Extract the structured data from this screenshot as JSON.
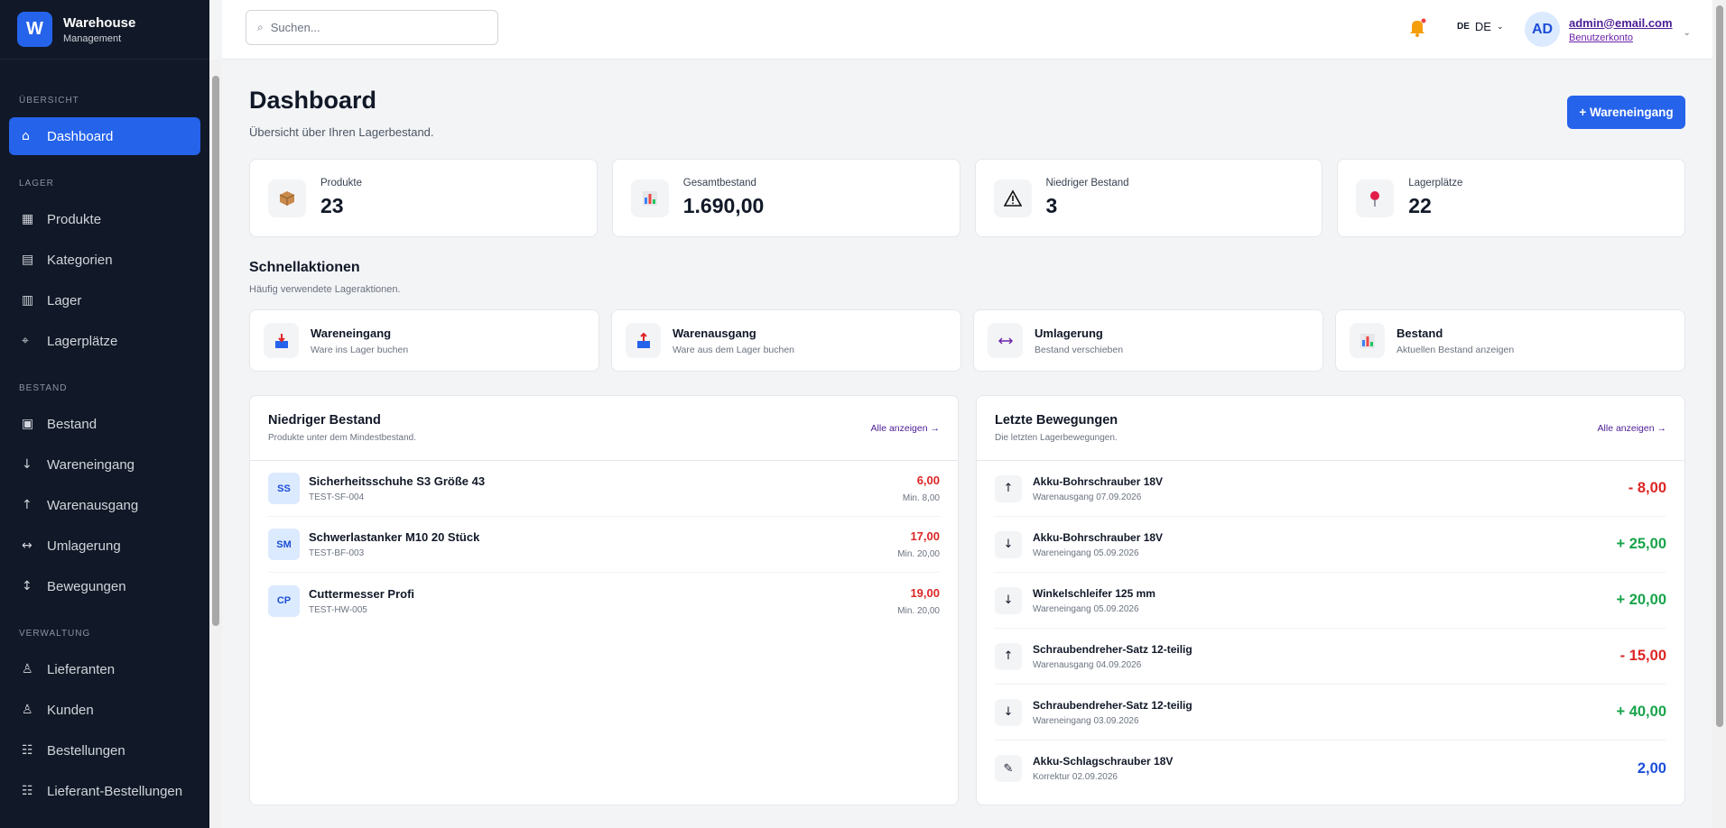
{
  "sidebar": {
    "logo": "W",
    "brand_title": "Warehouse",
    "brand_subtitle": "Management",
    "sections": [
      {
        "label": "ÜBERSICHT",
        "items": [
          {
            "icon": "⌂",
            "label": "Dashboard",
            "active": true
          }
        ]
      },
      {
        "label": "LAGER",
        "items": [
          {
            "icon": "▦",
            "label": "Produkte"
          },
          {
            "icon": "▤",
            "label": "Kategorien"
          },
          {
            "icon": "▥",
            "label": "Lager"
          },
          {
            "icon": "⌖",
            "label": "Lagerplätze"
          }
        ]
      },
      {
        "label": "BESTAND",
        "items": [
          {
            "icon": "▣",
            "label": "Bestand"
          },
          {
            "icon": "↓",
            "label": "Wareneingang"
          },
          {
            "icon": "↑",
            "label": "Warenausgang"
          },
          {
            "icon": "↔",
            "label": "Umlagerung"
          },
          {
            "icon": "↕",
            "label": "Bewegungen"
          }
        ]
      },
      {
        "label": "VERWALTUNG",
        "items": [
          {
            "icon": "♙",
            "label": "Lieferanten"
          },
          {
            "icon": "♙",
            "label": "Kunden"
          },
          {
            "icon": "☷",
            "label": "Bestellungen"
          },
          {
            "icon": "☷",
            "label": "Lieferant-Bestellungen"
          }
        ]
      }
    ]
  },
  "topbar": {
    "search_placeholder": "Suchen...",
    "language_flag": "DE",
    "language": "DE",
    "user_initials": "AD",
    "user_email": "admin@email.com",
    "account_link": "Benutzerkonto"
  },
  "header": {
    "title": "Dashboard",
    "subtitle": "Übersicht über Ihren Lagerbestand.",
    "primary_button": "+ Wareneingang"
  },
  "stats": [
    {
      "label": "Produkte",
      "value": "23"
    },
    {
      "label": "Gesamtbestand",
      "value": "1.690,00"
    },
    {
      "label": "Niedriger Bestand",
      "value": "3"
    },
    {
      "label": "Lagerplätze",
      "value": "22"
    }
  ],
  "quick_actions": {
    "title": "Schnellaktionen",
    "subtitle": "Häufig verwendete Lageraktionen.",
    "items": [
      {
        "title": "Wareneingang",
        "subtitle": "Ware ins Lager buchen"
      },
      {
        "title": "Warenausgang",
        "subtitle": "Ware aus dem Lager buchen"
      },
      {
        "title": "Umlagerung",
        "subtitle": "Bestand verschieben"
      },
      {
        "title": "Bestand",
        "subtitle": "Aktuellen Bestand anzeigen"
      }
    ]
  },
  "low_stock": {
    "title": "Niedriger Bestand",
    "subtitle": "Produkte unter dem Mindestbestand.",
    "link": "Alle anzeigen →",
    "rows": [
      {
        "initials": "SS",
        "name": "Sicherheitsschuhe S3 Größe 43",
        "sku": "TEST-SF-004",
        "quantity": "6,00",
        "minimum": "Min. 8,00"
      },
      {
        "initials": "SM",
        "name": "Schwerlastanker M10 20 Stück",
        "sku": "TEST-BF-003",
        "quantity": "17,00",
        "minimum": "Min. 20,00"
      },
      {
        "initials": "CP",
        "name": "Cuttermesser Profi",
        "sku": "TEST-HW-005",
        "quantity": "19,00",
        "minimum": "Min. 20,00"
      }
    ]
  },
  "movements": {
    "title": "Letzte Bewegungen",
    "subtitle": "Die letzten Lagerbewegungen.",
    "link": "Alle anzeigen →",
    "rows": [
      {
        "icon": "↑",
        "product": "Akku-Bohrschrauber 18V",
        "detail": "Warenausgang 07.09.2026",
        "quantity": "- 8,00",
        "color": "#dc2626"
      },
      {
        "icon": "↓",
        "product": "Akku-Bohrschrauber 18V",
        "detail": "Wareneingang 05.09.2026",
        "quantity": "+ 25,00",
        "color": "#16a34a"
      },
      {
        "icon": "↓",
        "product": "Winkelschleifer 125 mm",
        "detail": "Wareneingang 05.09.2026",
        "quantity": "+ 20,00",
        "color": "#16a34a"
      },
      {
        "icon": "↑",
        "product": "Schraubendreher-Satz 12-teilig",
        "detail": "Warenausgang 04.09.2026",
        "quantity": "- 15,00",
        "color": "#dc2626"
      },
      {
        "icon": "↓",
        "product": "Schraubendreher-Satz 12-teilig",
        "detail": "Wareneingang 03.09.2026",
        "quantity": "+ 40,00",
        "color": "#16a34a"
      },
      {
        "icon": "✎",
        "product": "Akku-Schlagschrauber 18V",
        "detail": "Korrektur 02.09.2026",
        "quantity": "2,00",
        "color": "#1d4ed8"
      }
    ]
  }
}
